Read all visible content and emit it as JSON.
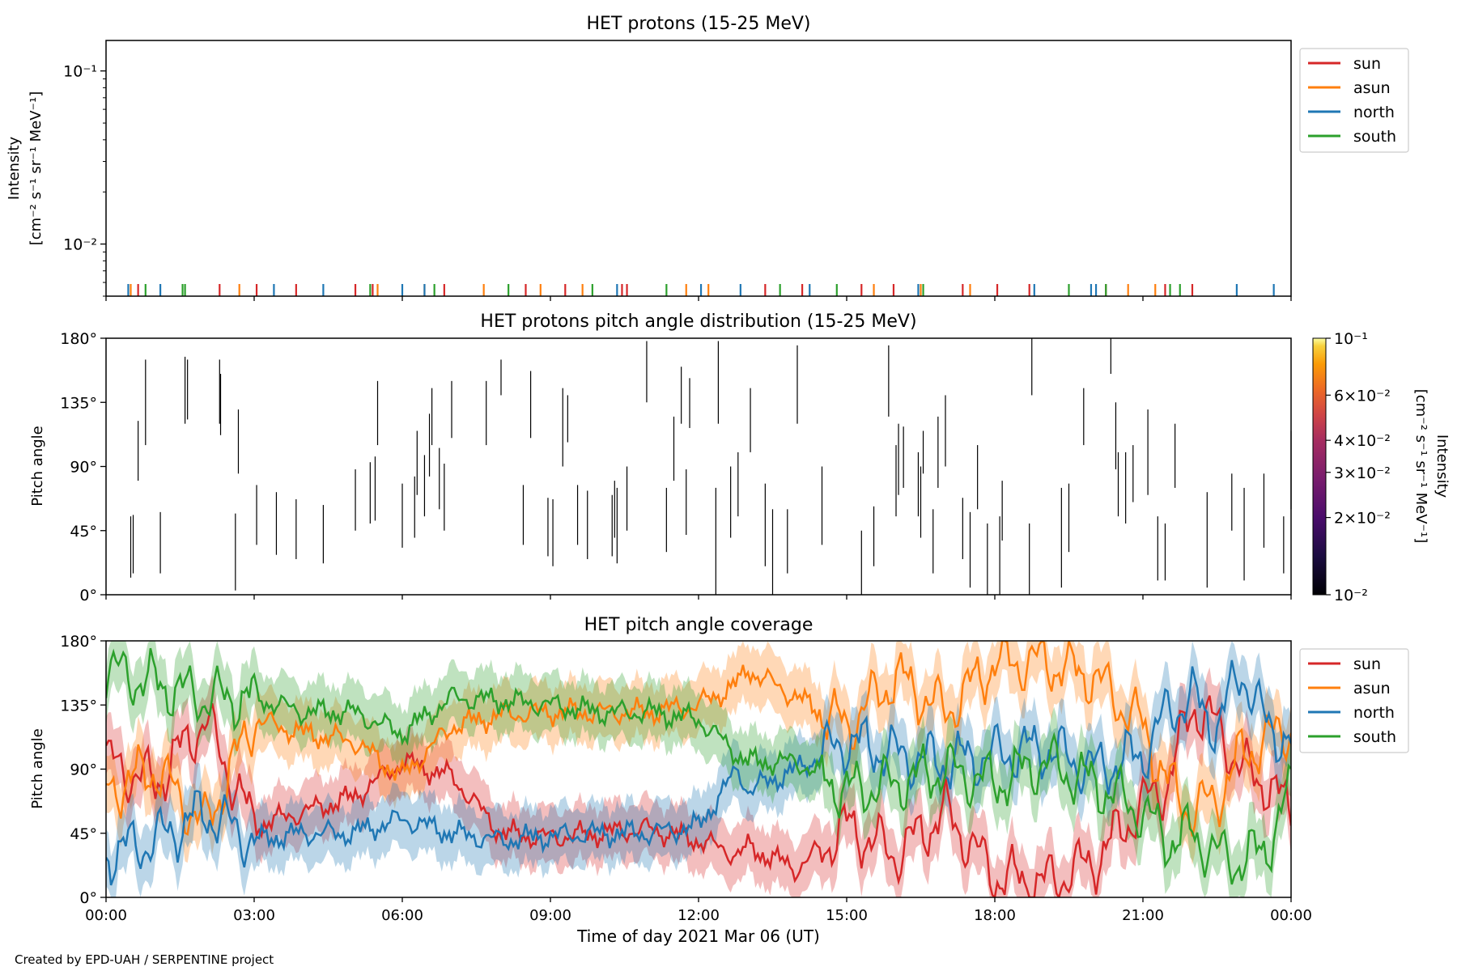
{
  "credit": "Created by EPD-UAH / SERPENTINE project",
  "colors": {
    "sun": "#d62728",
    "asun": "#ff7f0e",
    "north": "#1f77b4",
    "south": "#2ca02c"
  },
  "x_axis": {
    "label": "Time of day 2021 Mar 06 (UT)",
    "range_hours": [
      0,
      24
    ],
    "ticks": [
      {
        "h": 0,
        "label": "00:00"
      },
      {
        "h": 3,
        "label": "03:00"
      },
      {
        "h": 6,
        "label": "06:00"
      },
      {
        "h": 9,
        "label": "09:00"
      },
      {
        "h": 12,
        "label": "12:00"
      },
      {
        "h": 15,
        "label": "15:00"
      },
      {
        "h": 18,
        "label": "18:00"
      },
      {
        "h": 21,
        "label": "21:00"
      },
      {
        "h": 24,
        "label": "00:00"
      }
    ]
  },
  "chart_data": [
    {
      "type": "line",
      "title": "HET protons (15-25 MeV)",
      "ylabel_lines": [
        "Intensity",
        "[cm⁻² s⁻¹ sr⁻¹ MeV⁻¹]"
      ],
      "yscale": "log",
      "ylim": [
        0.005,
        0.15
      ],
      "yticks": [
        {
          "value": 0.1,
          "label": "10⁻¹"
        },
        {
          "value": 0.01,
          "label": "10⁻²"
        }
      ],
      "legend": [
        "sun",
        "asun",
        "north",
        "south"
      ],
      "legend_placement": "outside top-right",
      "note": "only short spikes at the bottom of the axis are visible",
      "spikes": {
        "sun": [
          0.65,
          2.3,
          3.05,
          3.85,
          5.05,
          5.4,
          6.85,
          8.5,
          9.3,
          10.45,
          10.55,
          13.35,
          14.1,
          15.3,
          15.95,
          17.35,
          18.05,
          18.7,
          20.25,
          21.45,
          22.0
        ],
        "asun": [
          0.5,
          2.7,
          5.5,
          6.45,
          7.65,
          8.8,
          9.65,
          11.75,
          12.2,
          15.55,
          16.5,
          17.5,
          20.7,
          21.25
        ],
        "north": [
          0.45,
          1.1,
          3.4,
          4.4,
          6.0,
          6.45,
          10.35,
          12.05,
          12.85,
          14.25,
          16.45,
          18.8,
          19.95,
          20.05,
          22.9,
          23.65
        ],
        "south": [
          0.8,
          1.55,
          1.6,
          5.35,
          6.65,
          8.15,
          9.85,
          11.35,
          13.65,
          14.8,
          16.55,
          19.5,
          20.25,
          21.55,
          21.75
        ]
      }
    },
    {
      "type": "heatmap",
      "title": "HET protons pitch angle distribution (15-25 MeV)",
      "ylabel": "Pitch angle",
      "ylim": [
        0,
        180
      ],
      "yticks": [
        {
          "value": 0,
          "label": "0°"
        },
        {
          "value": 45,
          "label": "45°"
        },
        {
          "value": 90,
          "label": "90°"
        },
        {
          "value": 135,
          "label": "135°"
        },
        {
          "value": 180,
          "label": "180°"
        }
      ],
      "colorbar": {
        "label_lines": [
          "Intensity",
          "[cm⁻² s⁻¹ sr⁻¹ MeV⁻¹]"
        ],
        "scale": "log",
        "range": [
          0.01,
          0.1
        ],
        "ticks": [
          {
            "value": 0.1,
            "label": "10⁻¹"
          },
          {
            "value": 0.06,
            "label": "6×10⁻²"
          },
          {
            "value": 0.04,
            "label": "4×10⁻²"
          },
          {
            "value": 0.03,
            "label": "3×10⁻²"
          },
          {
            "value": 0.02,
            "label": "2×10⁻²"
          },
          {
            "value": 0.01,
            "label": "10⁻²"
          }
        ]
      },
      "segments": [
        [
          0.5,
          12,
          55
        ],
        [
          0.55,
          15,
          56
        ],
        [
          0.65,
          80,
          122
        ],
        [
          0.8,
          105,
          165
        ],
        [
          1.1,
          15,
          58
        ],
        [
          1.6,
          120,
          167
        ],
        [
          1.65,
          123,
          165
        ],
        [
          2.3,
          120,
          165
        ],
        [
          2.32,
          112,
          155
        ],
        [
          2.62,
          3,
          57
        ],
        [
          2.68,
          85,
          130
        ],
        [
          3.05,
          35,
          77
        ],
        [
          3.45,
          28,
          72
        ],
        [
          3.85,
          25,
          67
        ],
        [
          4.4,
          22,
          63
        ],
        [
          5.05,
          45,
          88
        ],
        [
          5.35,
          50,
          93
        ],
        [
          5.45,
          52,
          97
        ],
        [
          5.5,
          105,
          150
        ],
        [
          6.0,
          33,
          78
        ],
        [
          6.25,
          40,
          83
        ],
        [
          6.3,
          70,
          115
        ],
        [
          6.45,
          55,
          98
        ],
        [
          6.55,
          83,
          127
        ],
        [
          6.6,
          105,
          145
        ],
        [
          6.75,
          60,
          103
        ],
        [
          6.85,
          45,
          92
        ],
        [
          7.0,
          110,
          150
        ],
        [
          7.7,
          105,
          150
        ],
        [
          8.0,
          140,
          165
        ],
        [
          8.45,
          35,
          77
        ],
        [
          8.6,
          110,
          157
        ],
        [
          8.95,
          27,
          68
        ],
        [
          9.05,
          20,
          67
        ],
        [
          9.25,
          90,
          145
        ],
        [
          9.35,
          107,
          140
        ],
        [
          9.55,
          35,
          77
        ],
        [
          9.75,
          25,
          73
        ],
        [
          10.25,
          27,
          70
        ],
        [
          10.3,
          40,
          80
        ],
        [
          10.35,
          22,
          75
        ],
        [
          10.55,
          45,
          90
        ],
        [
          10.95,
          135,
          178
        ],
        [
          11.35,
          30,
          75
        ],
        [
          11.5,
          80,
          125
        ],
        [
          11.65,
          120,
          160
        ],
        [
          11.75,
          42,
          88
        ],
        [
          11.82,
          117,
          152
        ],
        [
          12.35,
          0,
          75
        ],
        [
          12.4,
          120,
          178
        ],
        [
          12.65,
          40,
          90
        ],
        [
          12.8,
          55,
          100
        ],
        [
          13.05,
          100,
          145
        ],
        [
          13.35,
          20,
          78
        ],
        [
          13.5,
          0,
          60
        ],
        [
          13.8,
          15,
          60
        ],
        [
          14.0,
          120,
          175
        ],
        [
          14.5,
          35,
          90
        ],
        [
          15.3,
          0,
          45
        ],
        [
          15.55,
          20,
          62
        ],
        [
          15.85,
          125,
          175
        ],
        [
          16.0,
          55,
          105
        ],
        [
          16.05,
          70,
          120
        ],
        [
          16.15,
          75,
          118
        ],
        [
          16.45,
          55,
          100
        ],
        [
          16.5,
          40,
          90
        ],
        [
          16.55,
          85,
          115
        ],
        [
          16.75,
          15,
          60
        ],
        [
          16.85,
          75,
          125
        ],
        [
          17.0,
          90,
          140
        ],
        [
          17.35,
          25,
          68
        ],
        [
          17.5,
          5,
          58
        ],
        [
          17.65,
          60,
          105
        ],
        [
          17.85,
          0,
          50
        ],
        [
          18.1,
          0,
          55
        ],
        [
          18.15,
          38,
          80
        ],
        [
          18.7,
          0,
          50
        ],
        [
          18.75,
          140,
          180
        ],
        [
          19.35,
          5,
          75
        ],
        [
          19.5,
          30,
          78
        ],
        [
          19.8,
          105,
          145
        ],
        [
          20.35,
          155,
          180
        ],
        [
          20.45,
          88,
          135
        ],
        [
          20.5,
          55,
          100
        ],
        [
          20.65,
          50,
          100
        ],
        [
          20.8,
          65,
          105
        ],
        [
          21.1,
          70,
          130
        ],
        [
          21.3,
          10,
          55
        ],
        [
          21.45,
          10,
          50
        ],
        [
          21.65,
          75,
          120
        ],
        [
          22.3,
          5,
          72
        ],
        [
          22.8,
          45,
          85
        ],
        [
          23.05,
          10,
          75
        ],
        [
          23.45,
          33,
          85
        ],
        [
          23.85,
          15,
          55
        ],
        [
          24.0,
          60,
          115
        ]
      ]
    },
    {
      "type": "line",
      "title": "HET pitch angle coverage",
      "ylabel": "Pitch angle",
      "ylim": [
        0,
        180
      ],
      "yticks": [
        {
          "value": 0,
          "label": "0°"
        },
        {
          "value": 45,
          "label": "45°"
        },
        {
          "value": 90,
          "label": "90°"
        },
        {
          "value": 135,
          "label": "135°"
        },
        {
          "value": 180,
          "label": "180°"
        }
      ],
      "legend": [
        "sun",
        "asun",
        "north",
        "south"
      ],
      "legend_placement": "outside top-right",
      "bands": "shaded ±20° coverage range around each line",
      "series": [
        {
          "name": "sun",
          "x": [
            0,
            1,
            2,
            3,
            4,
            5,
            6,
            7,
            8,
            9,
            10,
            11,
            12,
            12.8,
            13,
            14,
            15,
            16,
            17,
            18,
            19,
            20,
            21,
            21.5,
            22,
            22.5,
            23,
            23.5,
            24
          ],
          "y": [
            95,
            80,
            125,
            50,
            60,
            70,
            95,
            85,
            45,
            42,
            45,
            48,
            40,
            30,
            35,
            20,
            50,
            30,
            60,
            15,
            10,
            25,
            65,
            80,
            135,
            120,
            90,
            80,
            60
          ]
        },
        {
          "name": "asun",
          "x": [
            0,
            1,
            2,
            3,
            4,
            5,
            6,
            7,
            8,
            9,
            10,
            11,
            12,
            12.8,
            13,
            14,
            15,
            16,
            17,
            18,
            19,
            20,
            21,
            21.5,
            22,
            22.5,
            23,
            23.5,
            24
          ],
          "y": [
            75,
            90,
            50,
            125,
            115,
            110,
            85,
            120,
            128,
            130,
            130,
            130,
            135,
            150,
            160,
            140,
            120,
            155,
            130,
            165,
            165,
            155,
            120,
            80,
            60,
            70,
            100,
            110,
            120
          ]
        },
        {
          "name": "north",
          "x": [
            0,
            1,
            2,
            3,
            4,
            5,
            6,
            7,
            8,
            9,
            10,
            11,
            12,
            12.8,
            13,
            14,
            15,
            16,
            17,
            18,
            19,
            20,
            21,
            21.5,
            22,
            22.5,
            23,
            23.5,
            24
          ],
          "y": [
            30,
            40,
            60,
            40,
            45,
            45,
            55,
            45,
            40,
            43,
            45,
            45,
            50,
            90,
            75,
            90,
            110,
            100,
            95,
            100,
            105,
            90,
            100,
            130,
            140,
            120,
            160,
            120,
            110
          ]
        },
        {
          "name": "south",
          "x": [
            0,
            1,
            2,
            3,
            4,
            5,
            6,
            7,
            8,
            9,
            10,
            11,
            12,
            12.8,
            13,
            14,
            15,
            16,
            17,
            18,
            19,
            20,
            21,
            21.5,
            22,
            22.5,
            23,
            23.5,
            24
          ],
          "y": [
            160,
            150,
            140,
            140,
            130,
            130,
            115,
            140,
            138,
            135,
            130,
            130,
            125,
            100,
            95,
            95,
            75,
            80,
            90,
            80,
            95,
            80,
            60,
            40,
            45,
            30,
            25,
            35,
            75
          ]
        }
      ]
    }
  ]
}
